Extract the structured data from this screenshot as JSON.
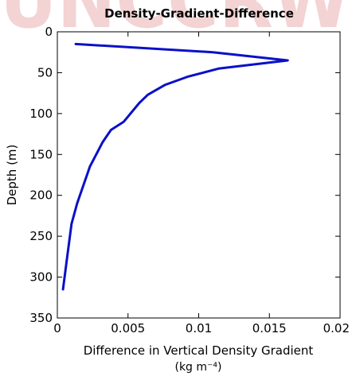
{
  "chart_data": {
    "type": "line",
    "title": "Density-Gradient-Difference",
    "xlabel": "Difference in Vertical Density Gradient",
    "xunits": "(kg m⁻⁴)",
    "ylabel": "Depth (m)",
    "xlim": [
      0,
      0.02
    ],
    "ylim": [
      350,
      0
    ],
    "y_inverted": true,
    "xticks": [
      "0",
      "0.005",
      "0.01",
      "0.015",
      "0.02"
    ],
    "yticks": [
      "0",
      "50",
      "100",
      "150",
      "200",
      "250",
      "300",
      "350"
    ],
    "grid": false,
    "line_color": "#0a10c8",
    "series": [
      {
        "x": [
          0.0013,
          0.011,
          0.0163,
          0.0114,
          0.0092,
          0.0076,
          0.0064,
          0.0058,
          0.0047,
          0.0038,
          0.0032,
          0.0023,
          0.0014,
          0.001,
          0.0007,
          0.0004
        ],
        "y": [
          15,
          25,
          35,
          45,
          55,
          65,
          77,
          87,
          110,
          120,
          135,
          165,
          210,
          235,
          275,
          315
        ]
      }
    ]
  }
}
